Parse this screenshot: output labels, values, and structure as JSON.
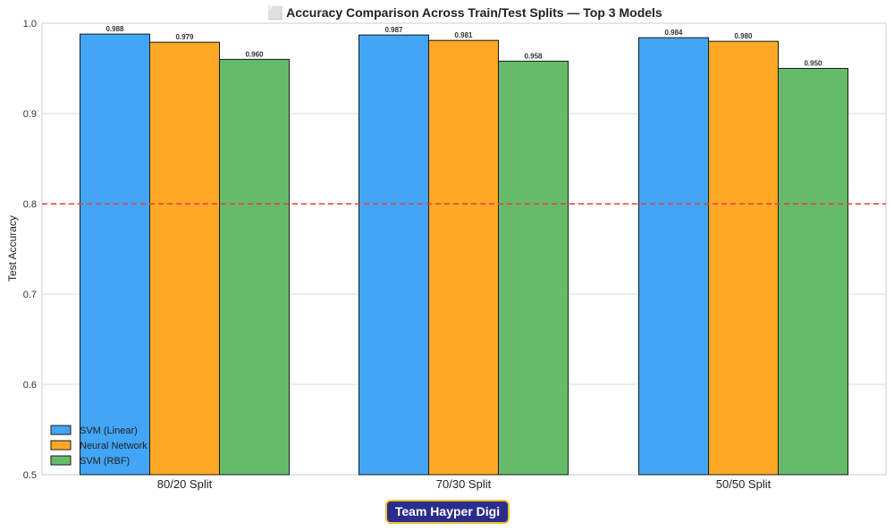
{
  "chart_data": {
    "type": "bar",
    "title": "⬜ Accuracy Comparison Across Train/Test Splits — Top 3 Models",
    "xlabel": "",
    "ylabel": "Test Accuracy",
    "ylim": [
      0.5,
      1.0
    ],
    "yticks": [
      "0.5",
      "0.6",
      "0.7",
      "0.8",
      "0.9",
      "1.0"
    ],
    "ytick_values": [
      0.5,
      0.6,
      0.7,
      0.8,
      0.9,
      1.0
    ],
    "categories": [
      "80/20 Split",
      "70/30 Split",
      "50/50 Split"
    ],
    "series": [
      {
        "name": "SVM (Linear)",
        "color": "#42a5f5",
        "values": [
          0.988,
          0.987,
          0.984
        ],
        "labels": [
          "0.988",
          "0.987",
          "0.984"
        ]
      },
      {
        "name": "Neural Network",
        "color": "#ffa726",
        "values": [
          0.979,
          0.981,
          0.98
        ],
        "labels": [
          "0.979",
          "0.981",
          "0.980"
        ]
      },
      {
        "name": "SVM (RBF)",
        "color": "#66bb6a",
        "values": [
          0.96,
          0.958,
          0.95
        ],
        "labels": [
          "0.960",
          "0.958",
          "0.950"
        ]
      }
    ],
    "reference_line": {
      "value": 0.8,
      "color": "#ef3b3b",
      "style": "dashed"
    },
    "grid": true,
    "legend_position": "lower-left"
  },
  "badge": {
    "label": "Team Hayper Digi",
    "background": "#2b2d8c",
    "border": "#f1c232"
  }
}
